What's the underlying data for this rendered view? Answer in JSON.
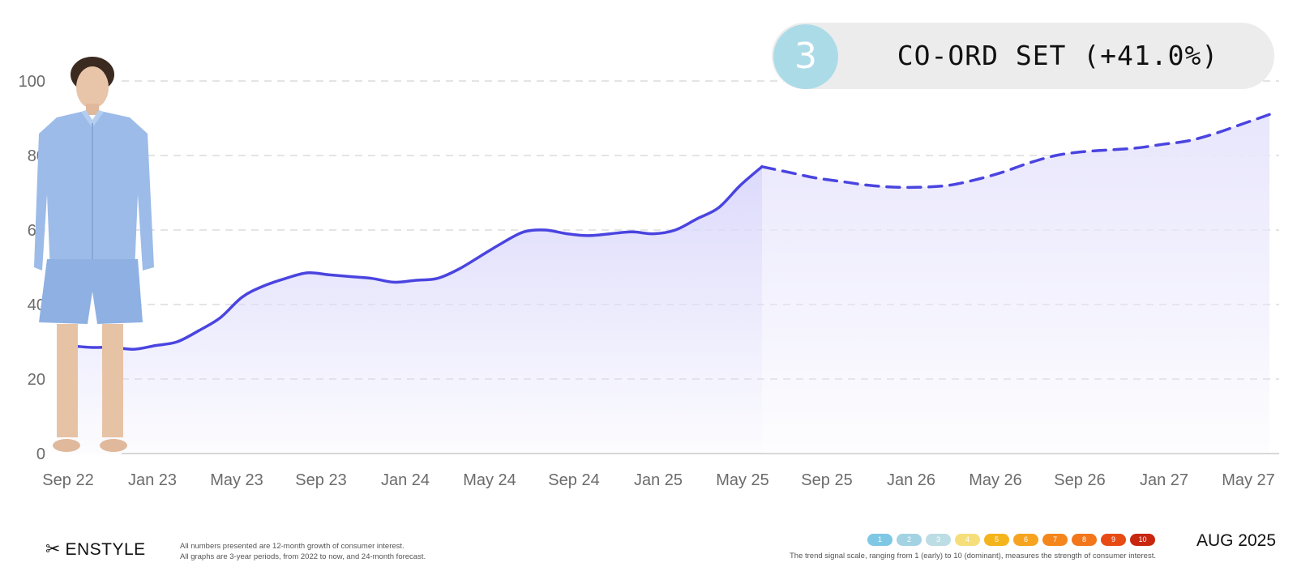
{
  "header": {
    "rank": "3",
    "title": "CO-ORD SET (+41.0%)"
  },
  "footer": {
    "brand": "ENSTYLE",
    "notes": [
      "All numbers presented are 12-month growth of consumer interest.",
      "All graphs are 3-year periods, from 2022 to now, and 24-month forecast."
    ],
    "scale": [
      "1",
      "2",
      "3",
      "4",
      "5",
      "6",
      "7",
      "8",
      "9",
      "10"
    ],
    "scale_caption": "The trend signal scale, ranging from 1 (early) to 10 (dominant), measures the strength of consumer interest.",
    "date": "AUG 2025"
  },
  "colors": {
    "line": "#4a44e0",
    "area": "#ddddfb",
    "rank_circle": "#acdbe8",
    "pill": "#ececec",
    "scale": [
      "#7ec8e6",
      "#a3d3e3",
      "#bcdde3",
      "#f6df7a",
      "#f5b41c",
      "#f6a41f",
      "#f4861b",
      "#f3761a",
      "#e84a14",
      "#c8260e"
    ]
  },
  "chart_data": {
    "type": "area",
    "ylim": [
      0,
      100
    ],
    "yticks": [
      0,
      20,
      40,
      60,
      80,
      100
    ],
    "grid": true,
    "xtick_labels": [
      "Sep 22",
      "Jan 23",
      "May 23",
      "Sep 23",
      "Jan 24",
      "May 24",
      "Sep 24",
      "Jan 25",
      "May 25",
      "Sep 25",
      "Jan 26",
      "May 26",
      "Sep 26",
      "Jan 27",
      "May 27"
    ],
    "series": [
      {
        "style": "solid",
        "values": [
          29,
          28.5,
          28.5,
          28,
          29,
          30,
          33,
          36.5,
          42,
          45,
          47,
          48.5,
          48,
          47.5,
          47,
          46,
          46.5,
          47,
          49.5,
          53,
          56.5,
          59.5,
          60,
          59,
          58.5,
          59,
          59.5,
          59,
          60,
          63,
          66,
          72,
          77
        ]
      },
      {
        "style": "dashed",
        "values": [
          77,
          75.5,
          74,
          73,
          72,
          71.5,
          71.5,
          72,
          73.5,
          75.5,
          78,
          80,
          81,
          81.5,
          82,
          83,
          84,
          86,
          88.5,
          91
        ]
      }
    ]
  }
}
